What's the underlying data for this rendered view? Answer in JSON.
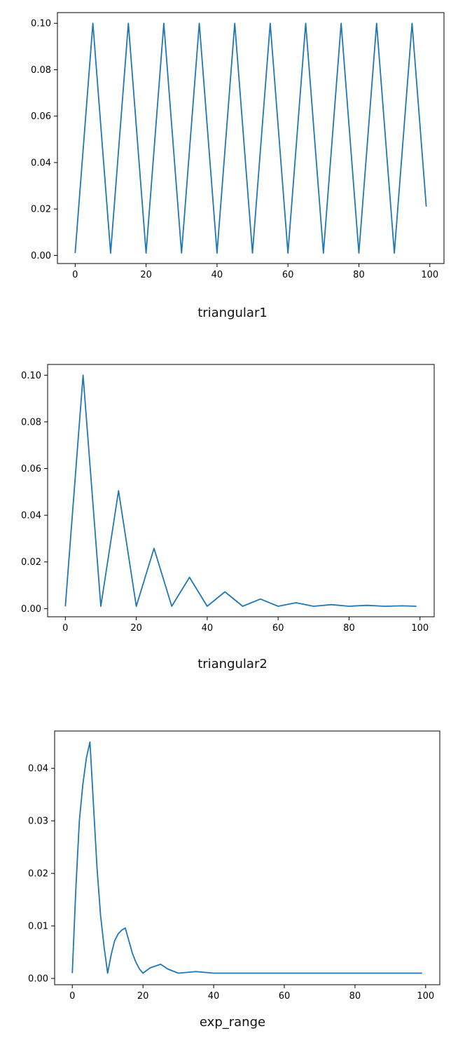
{
  "chart_data": [
    {
      "type": "line",
      "caption": "triangular1",
      "xlim": [
        -5,
        104
      ],
      "ylim": [
        -0.0035,
        0.1046
      ],
      "xticks": [
        0,
        20,
        40,
        60,
        80,
        100
      ],
      "yticks": [
        0.0,
        0.02,
        0.04,
        0.06,
        0.08,
        0.1
      ],
      "ytick_labels": [
        "0.00",
        "0.02",
        "0.04",
        "0.06",
        "0.08",
        "0.10"
      ],
      "line_color": "#1f77b4",
      "series": [
        {
          "x": [
            0,
            5,
            10,
            15,
            20,
            25,
            30,
            35,
            40,
            45,
            50,
            55,
            60,
            65,
            70,
            75,
            80,
            85,
            90,
            95,
            99
          ],
          "values": [
            0.001,
            0.1,
            0.001,
            0.1,
            0.001,
            0.1,
            0.001,
            0.1,
            0.001,
            0.1,
            0.001,
            0.1,
            0.001,
            0.1,
            0.001,
            0.1,
            0.001,
            0.1,
            0.001,
            0.1,
            0.021
          ]
        }
      ]
    },
    {
      "type": "line",
      "caption": "triangular2",
      "xlim": [
        -5,
        104
      ],
      "ylim": [
        -0.0035,
        0.1046
      ],
      "xticks": [
        0,
        20,
        40,
        60,
        80,
        100
      ],
      "yticks": [
        0.0,
        0.02,
        0.04,
        0.06,
        0.08,
        0.1
      ],
      "ytick_labels": [
        "0.00",
        "0.02",
        "0.04",
        "0.06",
        "0.08",
        "0.10"
      ],
      "line_color": "#1f77b4",
      "series": [
        {
          "x": [
            0,
            5,
            10,
            15,
            20,
            25,
            30,
            35,
            40,
            45,
            50,
            55,
            60,
            65,
            70,
            75,
            80,
            85,
            90,
            95,
            99
          ],
          "values": [
            0.001,
            0.1,
            0.001,
            0.0505,
            0.001,
            0.0258,
            0.001,
            0.0134,
            0.001,
            0.0072,
            0.001,
            0.0041,
            0.001,
            0.0025,
            0.001,
            0.0017,
            0.001,
            0.0014,
            0.001,
            0.0012,
            0.001
          ]
        }
      ]
    },
    {
      "type": "line",
      "caption": "exp_range",
      "xlim": [
        -5,
        104
      ],
      "ylim": [
        -0.0012,
        0.0471
      ],
      "xticks": [
        0,
        20,
        40,
        60,
        80,
        100
      ],
      "yticks": [
        0.0,
        0.01,
        0.02,
        0.03,
        0.04
      ],
      "ytick_labels": [
        "0.00",
        "0.01",
        "0.02",
        "0.03",
        "0.04"
      ],
      "line_color": "#1f77b4",
      "series": [
        {
          "x": [
            0,
            1,
            2,
            3,
            4,
            5,
            6,
            7,
            8,
            9,
            10,
            11,
            12,
            13,
            14,
            15,
            16,
            17,
            18,
            19,
            20,
            22,
            25,
            27,
            30,
            35,
            40,
            45,
            50,
            60,
            70,
            80,
            90,
            99
          ],
          "values": [
            0.001,
            0.017,
            0.03,
            0.037,
            0.042,
            0.045,
            0.033,
            0.021,
            0.012,
            0.006,
            0.001,
            0.0045,
            0.0072,
            0.0085,
            0.0092,
            0.0096,
            0.0072,
            0.0048,
            0.0031,
            0.0018,
            0.001,
            0.002,
            0.0027,
            0.0018,
            0.001,
            0.0013,
            0.001,
            0.001,
            0.001,
            0.001,
            0.001,
            0.001,
            0.001,
            0.001
          ]
        }
      ]
    }
  ]
}
